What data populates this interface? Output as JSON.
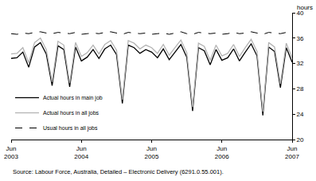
{
  "chart_data": {
    "type": "line",
    "y_label": "hours",
    "annotations": [
      "Source: Labour Force, Australia, Detailed – Electronic Delivery (6291.0.55.001)."
    ],
    "categories": [
      "Jun 2003",
      null,
      null,
      null,
      null,
      null,
      null,
      null,
      null,
      null,
      null,
      null,
      "Jun 2004",
      null,
      null,
      null,
      null,
      null,
      null,
      null,
      null,
      null,
      null,
      null,
      "Jun 2005",
      null,
      null,
      null,
      null,
      null,
      null,
      null,
      null,
      null,
      null,
      null,
      "Jun 2006",
      null,
      null,
      null,
      null,
      null,
      null,
      null,
      null,
      null,
      null,
      null,
      "Jun 2007"
    ],
    "series": [
      {
        "name": "Actual hours in main job",
        "color": "#000000",
        "line_style": "solid",
        "values": [
          32.8,
          32.9,
          33.8,
          31.4,
          34.6,
          35.3,
          33.5,
          28.5,
          34.8,
          34.2,
          28.3,
          34.6,
          32.4,
          33.0,
          34.2,
          32.8,
          34.3,
          34.9,
          33.4,
          25.7,
          34.9,
          34.5,
          33.6,
          34.2,
          33.8,
          32.9,
          34.3,
          32.6,
          33.8,
          35.0,
          33.0,
          24.5,
          34.5,
          34.0,
          31.8,
          34.2,
          32.5,
          32.9,
          34.3,
          32.4,
          33.8,
          35.1,
          33.2,
          23.8,
          34.6,
          33.9,
          28.2,
          34.5,
          32.2
        ]
      },
      {
        "name": "Actual hours in all jobs",
        "color": "#b4b4b4",
        "line_style": "solid",
        "values": [
          33.5,
          33.6,
          34.5,
          32.1,
          35.3,
          36.0,
          34.2,
          29.1,
          35.5,
          34.9,
          28.9,
          35.3,
          33.1,
          33.7,
          34.9,
          33.5,
          35.0,
          35.6,
          34.1,
          26.3,
          35.6,
          35.2,
          34.3,
          34.9,
          34.5,
          33.6,
          35.0,
          33.3,
          34.5,
          35.7,
          33.7,
          25.1,
          35.2,
          34.7,
          32.5,
          34.9,
          33.2,
          33.6,
          35.0,
          33.1,
          34.5,
          35.8,
          33.9,
          24.4,
          35.3,
          34.6,
          28.8,
          35.2,
          32.9
        ]
      },
      {
        "name": "Usual hours in all jobs",
        "color": "#000000",
        "line_style": "dash",
        "values": [
          36.7,
          36.6,
          36.8,
          36.7,
          36.9,
          37.0,
          36.8,
          36.7,
          36.9,
          36.8,
          36.7,
          36.9,
          36.6,
          36.7,
          36.8,
          36.7,
          36.9,
          37.0,
          36.8,
          36.6,
          36.9,
          36.8,
          36.7,
          36.8,
          36.6,
          36.7,
          36.8,
          36.6,
          36.8,
          37.0,
          36.7,
          36.6,
          36.9,
          36.8,
          36.7,
          36.8,
          36.6,
          36.7,
          36.9,
          36.7,
          36.8,
          37.0,
          36.8,
          36.6,
          36.9,
          36.8,
          36.7,
          36.9,
          36.7
        ]
      }
    ],
    "ylim": [
      20,
      40
    ],
    "yticks": [
      20,
      24,
      28,
      32,
      36,
      40
    ],
    "grid": false,
    "legend": "bottom left"
  }
}
